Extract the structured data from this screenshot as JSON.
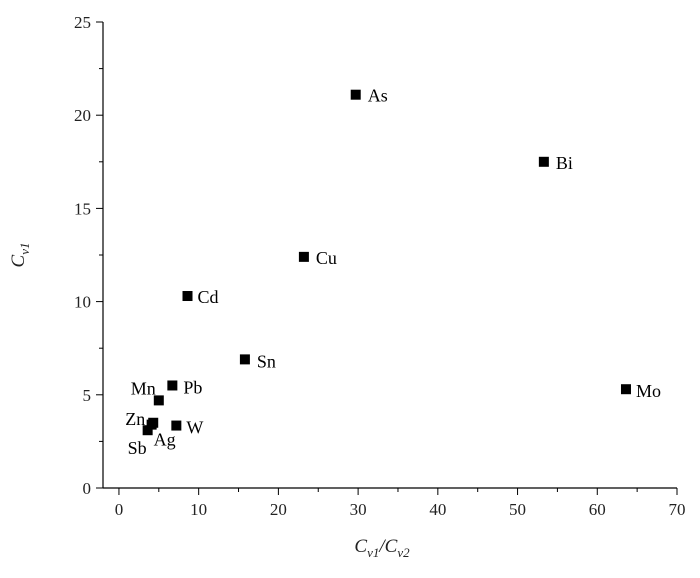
{
  "chart_data": {
    "type": "scatter",
    "title": "",
    "xlabel": {
      "main": "C",
      "sub": "v1",
      "sep": "/",
      "main2": "C",
      "sub2": "v2"
    },
    "ylabel": {
      "main": "C",
      "sub": "v1"
    },
    "xlim": [
      -2,
      70
    ],
    "ylim": [
      0,
      25
    ],
    "xticks": [
      "0",
      "10",
      "20",
      "30",
      "40",
      "50",
      "60",
      "70"
    ],
    "yticks": [
      "0",
      "5",
      "10",
      "15",
      "20",
      "25"
    ],
    "grid": false,
    "marker_color": "#000000",
    "series": [
      {
        "points": [
          {
            "label": "As",
            "x": 29.7,
            "y": 21.1
          },
          {
            "label": "Bi",
            "x": 53.3,
            "y": 17.5
          },
          {
            "label": "Cu",
            "x": 23.2,
            "y": 12.4
          },
          {
            "label": "Cd",
            "x": 8.6,
            "y": 10.3
          },
          {
            "label": "Sn",
            "x": 15.8,
            "y": 6.9
          },
          {
            "label": "Mo",
            "x": 63.6,
            "y": 5.3
          },
          {
            "label": "Pb",
            "x": 6.7,
            "y": 5.5
          },
          {
            "label": "Mn",
            "x": 5.0,
            "y": 4.7
          },
          {
            "label": "Zn",
            "x": 4.3,
            "y": 3.5
          },
          {
            "label": "W",
            "x": 7.2,
            "y": 3.35
          },
          {
            "label": "Sb",
            "x": 3.6,
            "y": 3.1
          },
          {
            "label": "Ag",
            "x": 4.1,
            "y": 3.4
          }
        ]
      }
    ]
  }
}
